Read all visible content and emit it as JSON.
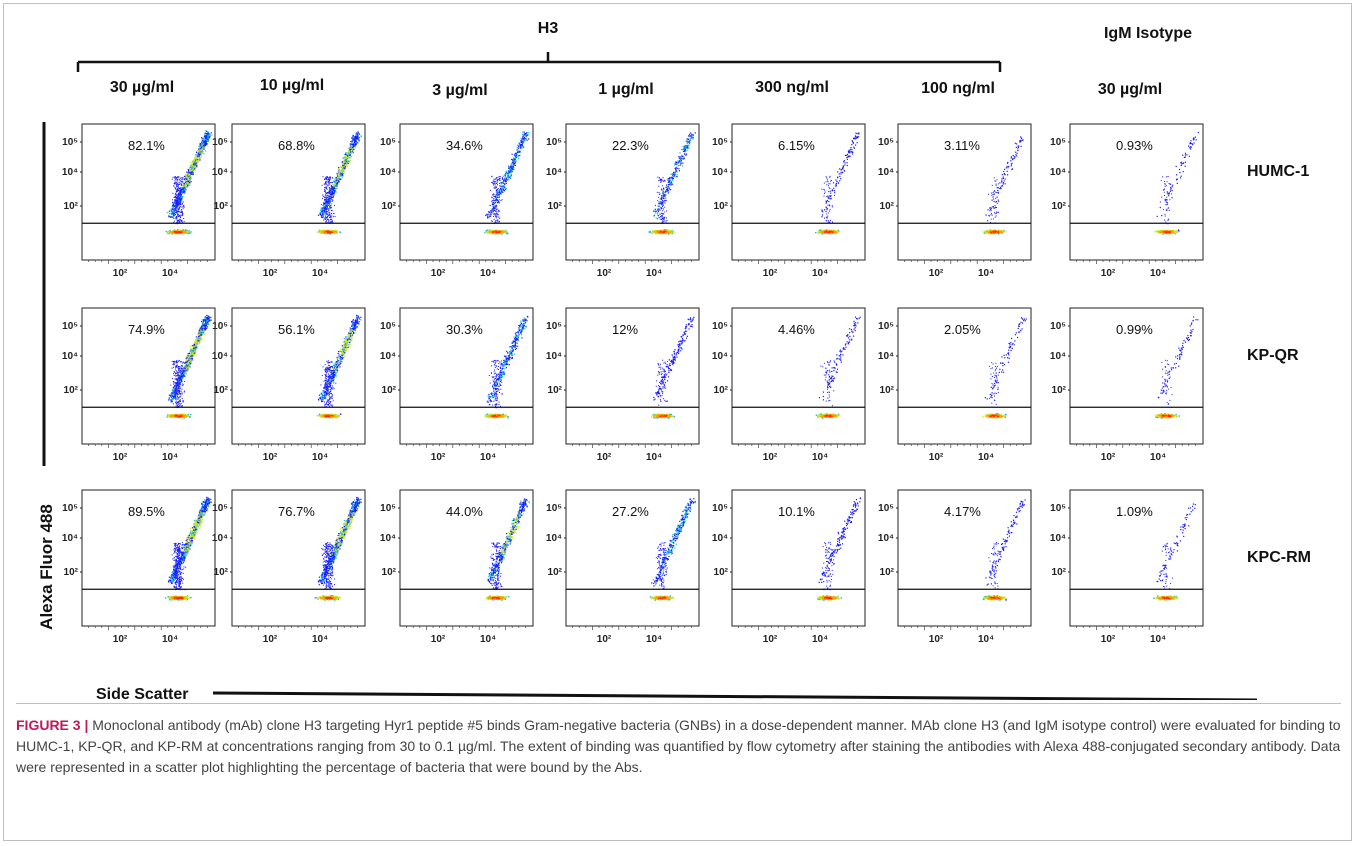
{
  "figure": {
    "group_label": "H3",
    "control_label": "IgM Isotype",
    "concentrations": [
      "30 µg/ml",
      "10 µg/ml",
      "3 µg/ml",
      "1 µg/ml",
      "300 ng/ml",
      "100 ng/ml",
      "30 µg/ml"
    ],
    "strains": [
      "HUMC-1",
      "KP-QR",
      "KPC-RM"
    ],
    "y_axis_label": "Alexa Fluor 488",
    "x_axis_label": "Side Scatter",
    "y_tick_labels": [
      "10⁵",
      "10⁴",
      "10²"
    ],
    "x_tick_labels": [
      "10²",
      "10⁴"
    ]
  },
  "chart_data": {
    "type": "scatter",
    "rows": [
      "HUMC-1",
      "KP-QR",
      "KPC-RM"
    ],
    "columns": [
      "30 µg/ml",
      "10 µg/ml",
      "3 µg/ml",
      "1 µg/ml",
      "300 ng/ml",
      "100 ng/ml",
      "30 µg/ml"
    ],
    "column_groups": [
      "H3",
      "H3",
      "H3",
      "H3",
      "H3",
      "H3",
      "IgM Isotype"
    ],
    "percent_bound": [
      [
        "82.1%",
        "68.8%",
        "34.6%",
        "22.3%",
        "6.15%",
        "3.11%",
        "0.93%"
      ],
      [
        "74.9%",
        "56.1%",
        "30.3%",
        "12%",
        "4.46%",
        "2.05%",
        "0.99%"
      ],
      [
        "89.5%",
        "76.7%",
        "44.0%",
        "27.2%",
        "10.1%",
        "4.17%",
        "1.09%"
      ]
    ],
    "xlabel": "Side Scatter",
    "ylabel": "Alexa Fluor 488",
    "xscale": "log",
    "yscale": "log"
  },
  "caption": {
    "label": "FIGURE 3 |",
    "text": " Monoclonal antibody (mAb) clone H3 targeting Hyr1 peptide #5 binds Gram-negative bacteria (GNBs) in a dose-dependent manner. MAb clone H3 (and IgM isotype control) were evaluated for binding to HUMC-1, KP-QR, and KP-RM at concentrations ranging from 30 to 0.1 µg/ml. The extent of binding was quantified by flow cytometry after staining the antibodies with Alexa 488-conjugated secondary antibody. Data were represented in a scatter plot highlighting the percentage of bacteria that were bound by the Abs."
  }
}
